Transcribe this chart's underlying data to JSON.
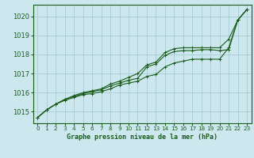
{
  "title": "Graphe pression niveau de la mer (hPa)",
  "bg_color": "#cce8ee",
  "grid_color": "#aad0d8",
  "line_color": "#1a5c1a",
  "xlim": [
    -0.5,
    23.5
  ],
  "ylim": [
    1014.4,
    1020.6
  ],
  "xticks": [
    0,
    1,
    2,
    3,
    4,
    5,
    6,
    7,
    8,
    9,
    10,
    11,
    12,
    13,
    14,
    15,
    16,
    17,
    18,
    19,
    20,
    21,
    22,
    23
  ],
  "yticks": [
    1015,
    1016,
    1017,
    1018,
    1019,
    1020
  ],
  "series": [
    [
      1014.7,
      1015.1,
      1015.4,
      1015.6,
      1015.75,
      1015.9,
      1015.95,
      1016.05,
      1016.2,
      1016.4,
      1016.5,
      1016.6,
      1016.85,
      1016.95,
      1017.35,
      1017.55,
      1017.65,
      1017.75,
      1017.75,
      1017.75,
      1017.75,
      1018.35,
      1019.8,
      1020.35
    ],
    [
      1014.7,
      1015.1,
      1015.4,
      1015.65,
      1015.8,
      1015.95,
      1016.05,
      1016.15,
      1016.35,
      1016.5,
      1016.65,
      1016.75,
      1017.35,
      1017.5,
      1017.95,
      1018.15,
      1018.2,
      1018.2,
      1018.25,
      1018.25,
      1018.2,
      1018.25,
      1019.8,
      1020.35
    ],
    [
      1014.7,
      1015.1,
      1015.4,
      1015.65,
      1015.85,
      1016.0,
      1016.1,
      1016.2,
      1016.45,
      1016.6,
      1016.8,
      1017.0,
      1017.45,
      1017.6,
      1018.1,
      1018.3,
      1018.35,
      1018.35,
      1018.35,
      1018.35,
      1018.35,
      1018.8,
      1019.8,
      1020.35
    ]
  ]
}
